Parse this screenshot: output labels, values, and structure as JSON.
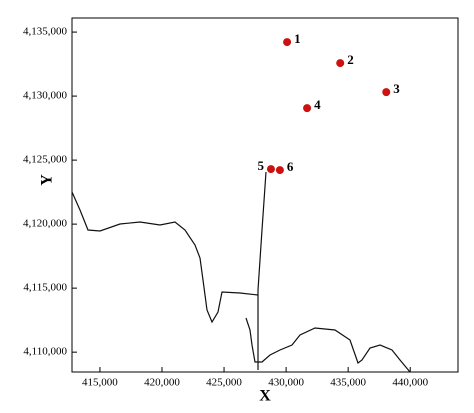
{
  "chart_data": {
    "type": "scatter",
    "x_label": "X",
    "y_label": "Y",
    "x": [
      430080,
      434360,
      438070,
      431690,
      428780,
      429500
    ],
    "values": [
      4134220,
      4132580,
      4130310,
      4129060,
      4124300,
      4124220
    ],
    "point_labels": [
      "1",
      "2",
      "3",
      "4",
      "5",
      "6"
    ],
    "color": "#cc1111",
    "xlim": [
      412750,
      443850
    ],
    "ylim": [
      4108450,
      4136100
    ],
    "xticks": [
      {
        "value": 415000,
        "label": "415,000"
      },
      {
        "value": 420000,
        "label": "420,000"
      },
      {
        "value": 425000,
        "label": "425,000"
      },
      {
        "value": 430000,
        "label": "430,000"
      },
      {
        "value": 435000,
        "label": "435,000"
      },
      {
        "value": 440000,
        "label": "440,000"
      }
    ],
    "yticks": [
      {
        "value": 4110000,
        "label": "4,110,000"
      },
      {
        "value": 4115000,
        "label": "4,115,000"
      },
      {
        "value": 4120000,
        "label": "4,120,000"
      },
      {
        "value": 4125000,
        "label": "4,125,000"
      },
      {
        "value": 4130000,
        "label": "4,130,000"
      },
      {
        "value": 4135000,
        "label": "4,135,000"
      }
    ]
  }
}
